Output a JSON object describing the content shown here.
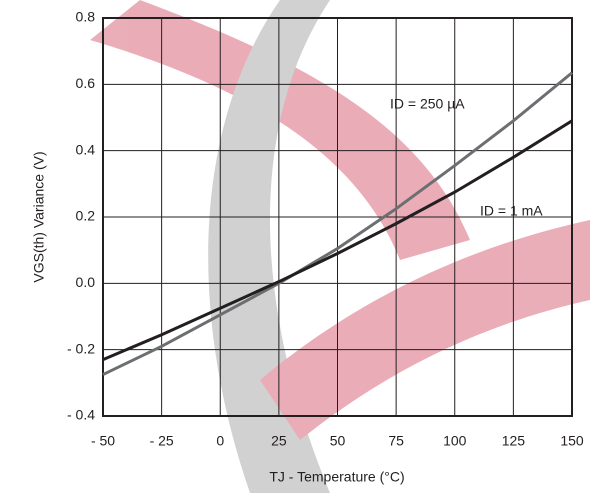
{
  "chart_data": {
    "type": "line",
    "y_label": "VGS(th) Variance (V)",
    "x_label": "TJ - Temperature (°C)",
    "x": [
      -50,
      -25,
      0,
      25,
      50,
      75,
      100,
      125,
      150
    ],
    "series": [
      {
        "name": "ID = 250 µA",
        "color": "#6d6e71",
        "values": [
          -0.275,
          -0.19,
          -0.095,
          0.0,
          0.105,
          0.225,
          0.355,
          0.49,
          0.635
        ]
      },
      {
        "name": "ID = 1 mA",
        "color": "#231f20",
        "values": [
          -0.23,
          -0.155,
          -0.075,
          0.005,
          0.09,
          0.18,
          0.275,
          0.38,
          0.49
        ]
      }
    ],
    "xlim": [
      -50,
      150
    ],
    "xticks": [
      {
        "value": -50,
        "label": "- 50"
      },
      {
        "value": -25,
        "label": "- 25"
      },
      0,
      25,
      50,
      75,
      100,
      125,
      150
    ],
    "ylim": [
      -0.4,
      0.8
    ],
    "yticks": [
      {
        "value": -0.4,
        "label": "- 0.4"
      },
      {
        "value": -0.2,
        "label": "- 0.2"
      },
      {
        "value": 0,
        "label": "0.0"
      },
      0.2,
      0.4,
      0.6,
      0.8
    ],
    "grid": true
  }
}
